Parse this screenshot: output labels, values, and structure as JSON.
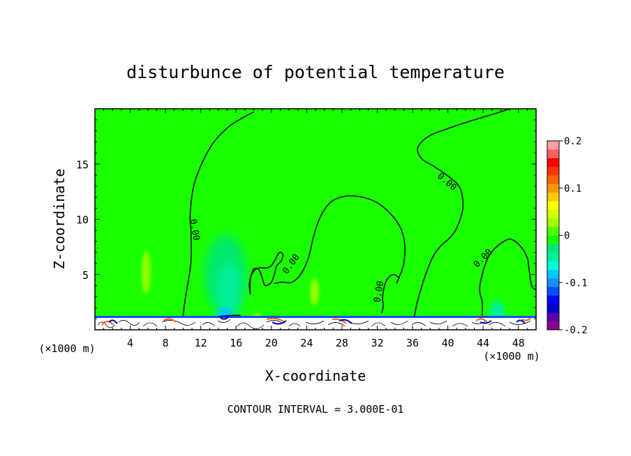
{
  "chart_data": {
    "type": "heatmap",
    "title": "disturbunce of potential temperature",
    "xlabel": "X-coordinate",
    "ylabel": "Z-coordinate",
    "x_unit_left": "(×1000 m)",
    "x_unit_right": "(×1000 m)",
    "xlim": [
      0,
      50
    ],
    "ylim": [
      0,
      20
    ],
    "xticks": [
      4,
      8,
      12,
      16,
      20,
      24,
      28,
      32,
      36,
      40,
      44,
      48
    ],
    "yticks": [
      5,
      10,
      15
    ],
    "background_value": 0.0,
    "contour_interval_text": "CONTOUR INTERVAL = 3.000E-01",
    "contour_labels": [
      {
        "text": "0.00",
        "x": 11.0,
        "z": 9.0
      },
      {
        "text": "0.00",
        "x": 22.5,
        "z": 5.8
      },
      {
        "text": "0.00",
        "x": 32.5,
        "z": 3.4
      },
      {
        "text": "0.00",
        "x": 39.7,
        "z": 13.2
      },
      {
        "text": "0.00",
        "x": 44.2,
        "z": 6.3
      }
    ],
    "zero_contours": [
      [
        [
          10.0,
          1.3
        ],
        [
          10.2,
          2.6
        ],
        [
          10.6,
          4.5
        ],
        [
          10.9,
          6.3
        ],
        [
          10.9,
          8.6
        ],
        [
          10.8,
          10.5
        ],
        [
          11.2,
          13.0
        ],
        [
          12.2,
          15.2
        ],
        [
          13.5,
          17.0
        ],
        [
          15.2,
          18.4
        ],
        [
          17.0,
          19.3
        ],
        [
          18.0,
          19.7
        ]
      ],
      [
        [
          17.6,
          3.2
        ],
        [
          17.6,
          4.5
        ],
        [
          18.0,
          5.5
        ],
        [
          18.6,
          5.4
        ],
        [
          19.0,
          4.6
        ],
        [
          19.3,
          4.0
        ],
        [
          20.0,
          4.3
        ],
        [
          20.4,
          5.2
        ],
        [
          20.6,
          5.8
        ],
        [
          21.1,
          6.2
        ],
        [
          21.3,
          6.8
        ],
        [
          20.9,
          7.0
        ],
        [
          20.4,
          6.3
        ],
        [
          20.0,
          5.8
        ],
        [
          19.4,
          5.6
        ],
        [
          18.6,
          5.6
        ],
        [
          17.9,
          5.2
        ],
        [
          17.5,
          4.2
        ],
        [
          17.6,
          3.2
        ]
      ],
      [
        [
          20.3,
          4.2
        ],
        [
          21.2,
          4.3
        ],
        [
          22.3,
          4.3
        ],
        [
          23.3,
          5.0
        ],
        [
          24.2,
          6.5
        ],
        [
          24.8,
          8.5
        ],
        [
          25.6,
          10.3
        ],
        [
          26.8,
          11.6
        ],
        [
          28.5,
          12.1
        ],
        [
          30.3,
          12.0
        ],
        [
          32.0,
          11.5
        ],
        [
          33.5,
          10.5
        ],
        [
          34.6,
          9.3
        ],
        [
          35.1,
          7.8
        ],
        [
          35.0,
          6.0
        ],
        [
          34.5,
          4.8
        ],
        [
          34.2,
          4.2
        ]
      ],
      [
        [
          32.5,
          1.5
        ],
        [
          32.7,
          2.2
        ],
        [
          32.6,
          3.0
        ],
        [
          33.0,
          4.4
        ],
        [
          33.8,
          5.0
        ],
        [
          34.5,
          4.7
        ]
      ],
      [
        [
          36.2,
          1.2
        ],
        [
          36.6,
          2.7
        ],
        [
          37.4,
          4.8
        ],
        [
          38.3,
          6.6
        ],
        [
          39.2,
          7.6
        ],
        [
          40.2,
          8.3
        ],
        [
          41.0,
          9.2
        ],
        [
          41.7,
          11.0
        ],
        [
          41.4,
          12.8
        ],
        [
          40.2,
          13.8
        ],
        [
          38.4,
          14.8
        ],
        [
          37.0,
          15.5
        ],
        [
          36.6,
          16.5
        ],
        [
          37.8,
          17.5
        ],
        [
          40.0,
          18.2
        ],
        [
          42.6,
          18.9
        ],
        [
          45.5,
          19.6
        ],
        [
          47.0,
          20.0
        ]
      ],
      [
        [
          43.9,
          1.3
        ],
        [
          43.9,
          2.5
        ],
        [
          43.6,
          3.6
        ],
        [
          43.9,
          5.0
        ],
        [
          44.6,
          6.6
        ],
        [
          45.8,
          7.7
        ],
        [
          47.1,
          8.2
        ],
        [
          48.3,
          7.5
        ],
        [
          49.0,
          6.5
        ],
        [
          49.2,
          5.5
        ],
        [
          49.5,
          4.0
        ],
        [
          50.0,
          3.6
        ]
      ],
      [
        [
          14.0,
          1.2
        ],
        [
          15.5,
          1.3
        ],
        [
          16.5,
          1.3
        ]
      ]
    ],
    "blobs": [
      {
        "x": 14.8,
        "z": 5.0,
        "rx": 2.4,
        "rz": 3.6,
        "value": -0.02
      },
      {
        "x": 15.2,
        "z": 3.5,
        "rx": 1.3,
        "rz": 2.6,
        "value": -0.05
      },
      {
        "x": 14.7,
        "z": 1.3,
        "rx": 0.9,
        "rz": 0.7,
        "value": -0.09
      },
      {
        "x": 5.8,
        "z": 5.2,
        "rx": 0.5,
        "rz": 1.9,
        "value": 0.02
      },
      {
        "x": 24.9,
        "z": 3.4,
        "rx": 0.5,
        "rz": 1.2,
        "value": 0.02
      },
      {
        "x": 45.6,
        "z": 1.6,
        "rx": 0.9,
        "rz": 1.0,
        "value": -0.05
      },
      {
        "x": 18.4,
        "z": 1.1,
        "rx": 0.5,
        "rz": 0.3,
        "value": 0.07
      }
    ],
    "colorbar": {
      "min": -0.2,
      "max": 0.2,
      "tick_labels": [
        "0.2",
        "0.1",
        "0",
        "-0.1",
        "-0.2"
      ],
      "tick_values": [
        0.2,
        0.1,
        0,
        -0.1,
        -0.2
      ],
      "colors": [
        "#8e008e",
        "#5a00a8",
        "#0000c8",
        "#0000ff",
        "#0050ff",
        "#1a8cff",
        "#00c8ff",
        "#00ffd2",
        "#00f0a0",
        "#00e678",
        "#19ff00",
        "#50ff00",
        "#a0ff00",
        "#d2ff00",
        "#ffff00",
        "#ffc800",
        "#ff9600",
        "#ff6400",
        "#ff3200",
        "#ff0000",
        "#ff6060",
        "#ffa0a0"
      ]
    }
  }
}
